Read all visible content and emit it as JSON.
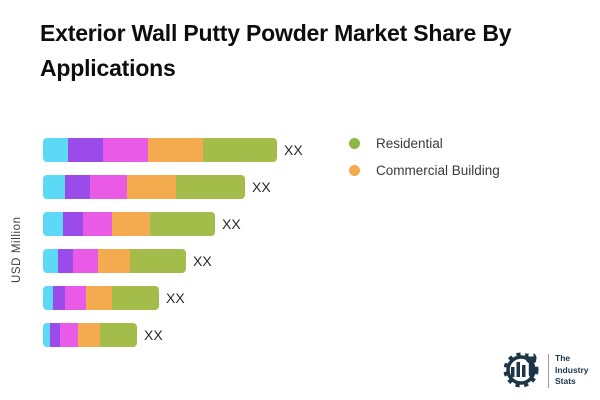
{
  "title": "Exterior Wall Putty Powder Market Share By Applications",
  "y_axis_label": "USD Million",
  "legend": {
    "items": [
      {
        "label": "Residential",
        "color": "#8cb847"
      },
      {
        "label": "Commercial Building",
        "color": "#f3a94e"
      }
    ]
  },
  "brand": {
    "line1": "The",
    "line2": "Industry",
    "line3": "Stats",
    "logo_color": "#1c3547",
    "icon": "gear-bars-wrench"
  },
  "chart_data": {
    "type": "bar",
    "orientation": "horizontal",
    "title": "Exterior Wall Putty Powder Market Share By Applications",
    "xlabel": "",
    "ylabel": "USD Million",
    "grid": false,
    "legend_position": "right-top",
    "value_label_text": "XX",
    "segment_colors": [
      "#5bd9f5",
      "#9b4be9",
      "#e95ae6",
      "#f4aa4f",
      "#a4bd4a"
    ],
    "segment_names": [
      "unlabeled-1",
      "unlabeled-2",
      "unlabeled-3",
      "commercial-building",
      "residential"
    ],
    "series_legend": [
      {
        "name": "Residential",
        "color": "#8cb847"
      },
      {
        "name": "Commercial Building",
        "color": "#f3a94e"
      }
    ],
    "bars": [
      {
        "value_label": "XX",
        "segment_widths": [
          25,
          35,
          45,
          55,
          74
        ],
        "total_width": 234
      },
      {
        "value_label": "XX",
        "segment_widths": [
          22,
          25,
          37,
          49,
          69
        ],
        "total_width": 202
      },
      {
        "value_label": "XX",
        "segment_widths": [
          20,
          20,
          29,
          38,
          65
        ],
        "total_width": 172
      },
      {
        "value_label": "XX",
        "segment_widths": [
          15,
          15,
          25,
          32,
          56
        ],
        "total_width": 143
      },
      {
        "value_label": "XX",
        "segment_widths": [
          10,
          12,
          21,
          26,
          47
        ],
        "total_width": 116
      },
      {
        "value_label": "XX",
        "segment_widths": [
          7,
          10,
          18,
          22,
          37
        ],
        "total_width": 94
      }
    ]
  }
}
